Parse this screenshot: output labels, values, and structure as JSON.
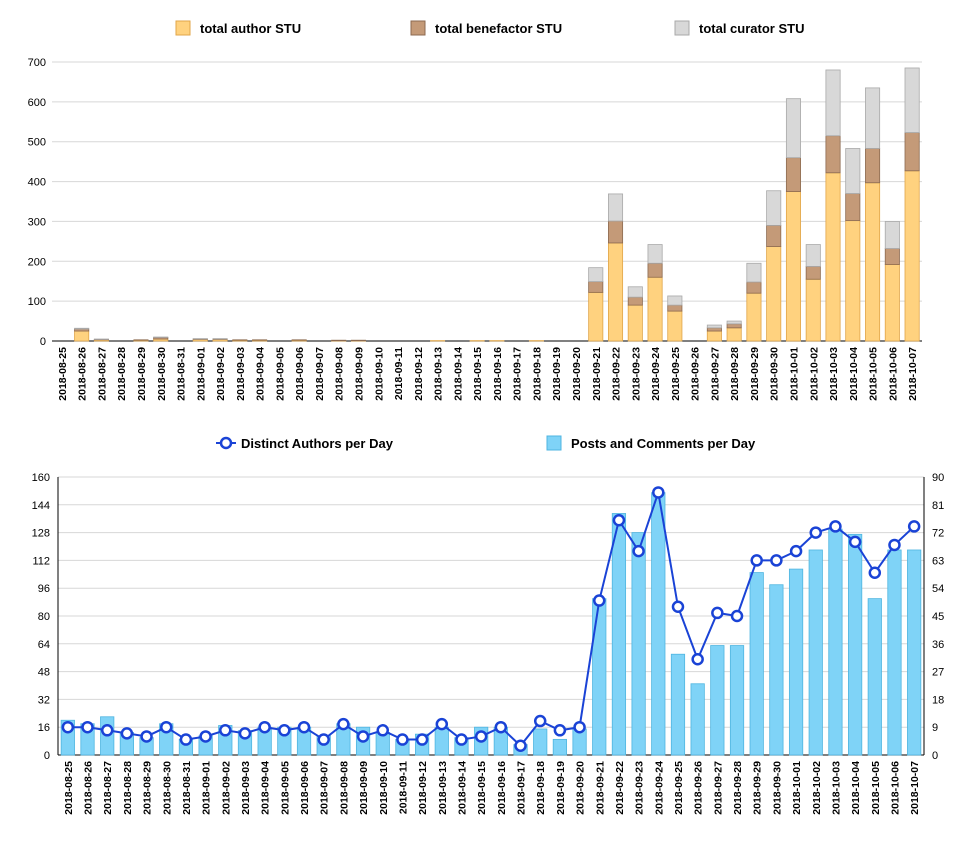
{
  "colors": {
    "author": "#ffd27f",
    "author_edge": "#e0a64a",
    "benefactor": "#c49a78",
    "benefactor_edge": "#8c6a50",
    "curator": "#d8d8d8",
    "curator_edge": "#a9a9a9",
    "posts": "#7fd3f7",
    "posts_edge": "#4fb5e0",
    "authors_line": "#1a43d6"
  },
  "chart_data": [
    {
      "type": "bar",
      "stacked": true,
      "title": "",
      "xlabel": "",
      "ylabel": "",
      "ylim": [
        0,
        700
      ],
      "yticks": [
        0,
        100,
        200,
        300,
        400,
        500,
        600,
        700
      ],
      "grid": true,
      "legend_position": "top",
      "categories": [
        "2018-08-25",
        "2018-08-26",
        "2018-08-27",
        "2018-08-28",
        "2018-08-29",
        "2018-08-30",
        "2018-08-31",
        "2018-09-01",
        "2018-09-02",
        "2018-09-03",
        "2018-09-04",
        "2018-09-05",
        "2018-09-06",
        "2018-09-07",
        "2018-09-08",
        "2018-09-09",
        "2018-09-10",
        "2018-09-11",
        "2018-09-12",
        "2018-09-13",
        "2018-09-14",
        "2018-09-15",
        "2018-09-16",
        "2018-09-17",
        "2018-09-18",
        "2018-09-19",
        "2018-09-20",
        "2018-09-21",
        "2018-09-22",
        "2018-09-23",
        "2018-09-24",
        "2018-09-25",
        "2018-09-26",
        "2018-09-27",
        "2018-09-28",
        "2018-09-29",
        "2018-09-30",
        "2018-10-01",
        "2018-10-02",
        "2018-10-03",
        "2018-10-04",
        "2018-10-05",
        "2018-10-06",
        "2018-10-07"
      ],
      "series": [
        {
          "name": "total author STU",
          "color_key": "author",
          "values": [
            0,
            25,
            3,
            0,
            2,
            5,
            0,
            4,
            4,
            2,
            2,
            0,
            2,
            0,
            1,
            1,
            0,
            0,
            0,
            1,
            0,
            1,
            1,
            0,
            1,
            0,
            0,
            122,
            246,
            90,
            160,
            75,
            0,
            25,
            33,
            120,
            237,
            375,
            155,
            422,
            302,
            397,
            192,
            427
          ]
        },
        {
          "name": "total benefactor STU",
          "color_key": "benefactor",
          "values": [
            0,
            5,
            1,
            0,
            1,
            4,
            0,
            1,
            1,
            1,
            1,
            0,
            1,
            0,
            1,
            1,
            0,
            0,
            0,
            0,
            0,
            0,
            0,
            0,
            0,
            0,
            0,
            27,
            55,
            20,
            35,
            15,
            0,
            8,
            10,
            28,
            53,
            85,
            32,
            93,
            68,
            86,
            40,
            96
          ]
        },
        {
          "name": "total curator STU",
          "color_key": "curator",
          "values": [
            0,
            2,
            1,
            0,
            0,
            1,
            0,
            1,
            1,
            0,
            0,
            0,
            0,
            0,
            0,
            0,
            0,
            0,
            0,
            0,
            0,
            0,
            0,
            0,
            0,
            0,
            0,
            35,
            68,
            26,
            47,
            23,
            0,
            7,
            7,
            47,
            87,
            148,
            55,
            165,
            113,
            152,
            68,
            162
          ]
        }
      ]
    },
    {
      "type": "bar_line",
      "title": "",
      "xlabel": "",
      "ylabel": "",
      "ylim_left": [
        0,
        160
      ],
      "yticks_left": [
        0,
        16,
        32,
        48,
        64,
        80,
        96,
        112,
        128,
        144,
        160
      ],
      "ylim_right": [
        0,
        90
      ],
      "yticks_right": [
        0,
        9,
        18,
        27,
        36,
        45,
        54,
        63,
        72,
        81,
        90
      ],
      "grid": true,
      "legend_position": "top",
      "categories": [
        "2018-08-25",
        "2018-08-26",
        "2018-08-27",
        "2018-08-28",
        "2018-08-29",
        "2018-08-30",
        "2018-08-31",
        "2018-09-01",
        "2018-09-02",
        "2018-09-03",
        "2018-09-04",
        "2018-09-05",
        "2018-09-06",
        "2018-09-07",
        "2018-09-08",
        "2018-09-09",
        "2018-09-10",
        "2018-09-11",
        "2018-09-12",
        "2018-09-13",
        "2018-09-14",
        "2018-09-15",
        "2018-09-16",
        "2018-09-17",
        "2018-09-18",
        "2018-09-19",
        "2018-09-20",
        "2018-09-21",
        "2018-09-22",
        "2018-09-23",
        "2018-09-24",
        "2018-09-25",
        "2018-09-26",
        "2018-09-27",
        "2018-09-28",
        "2018-09-29",
        "2018-09-30",
        "2018-10-01",
        "2018-10-02",
        "2018-10-03",
        "2018-10-04",
        "2018-10-05",
        "2018-10-06",
        "2018-10-07"
      ],
      "series": [
        {
          "name": "Distinct Authors per Day",
          "type": "line",
          "axis": "right",
          "color_key": "authors_line",
          "values": [
            9,
            9,
            8,
            7,
            6,
            9,
            5,
            6,
            8,
            7,
            9,
            8,
            9,
            5,
            10,
            6,
            8,
            5,
            5,
            10,
            5,
            6,
            9,
            3,
            11,
            8,
            9,
            50,
            76,
            66,
            85,
            48,
            31,
            46,
            45,
            63,
            63,
            66,
            72,
            74,
            69,
            59,
            68,
            74
          ]
        },
        {
          "name": "Posts and Comments per Day",
          "type": "bar",
          "axis": "left",
          "color_key": "posts",
          "values": [
            20,
            18,
            22,
            13,
            10,
            18,
            9,
            11,
            17,
            14,
            16,
            16,
            16,
            11,
            18,
            16,
            13,
            9,
            12,
            16,
            10,
            16,
            16,
            6,
            15,
            9,
            15,
            90,
            139,
            128,
            151,
            58,
            41,
            63,
            63,
            105,
            98,
            107,
            118,
            130,
            127,
            90,
            118,
            118
          ]
        }
      ]
    }
  ]
}
